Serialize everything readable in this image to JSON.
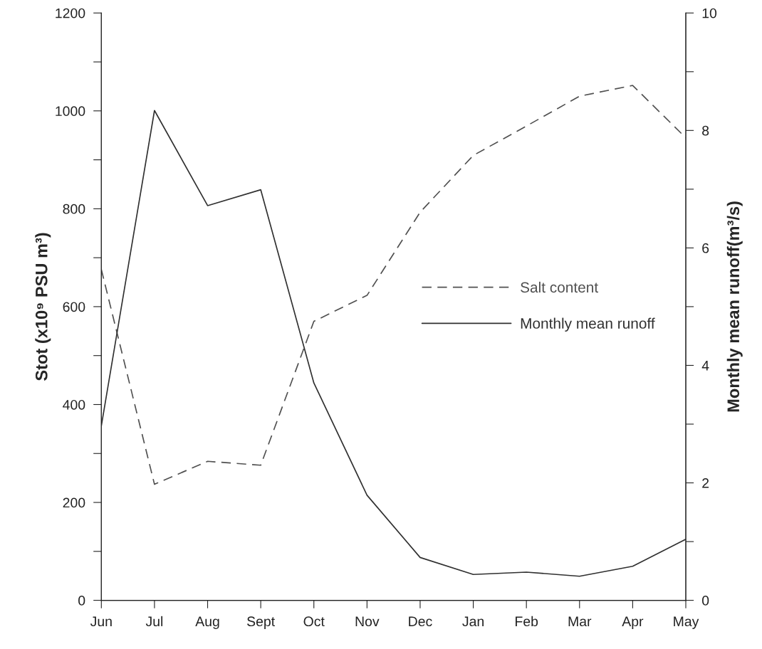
{
  "chart_data": {
    "type": "line",
    "ylabel": "Stot (x10⁹ PSU m³)",
    "y2label": "Monthly mean runoff(m³/s)",
    "categories": [
      "Jun",
      "Jul",
      "Aug",
      "Sept",
      "Oct",
      "Nov",
      "Dec",
      "Jan",
      "Feb",
      "Mar",
      "Apr",
      "May"
    ],
    "series": [
      {
        "name": "Salt content",
        "color": "#505050",
        "line_style": "dashed",
        "values": [
          676,
          237,
          284,
          276,
          570,
          623,
          793,
          909,
          969,
          1030,
          1052,
          945
        ]
      },
      {
        "name": "Monthly mean runoff",
        "color": "#303030",
        "line_style": "solid",
        "axis": "y2",
        "values": [
          2.97,
          8.34,
          6.72,
          6.99,
          3.7,
          1.79,
          0.73,
          0.44,
          0.48,
          0.41,
          0.58,
          1.04
        ]
      }
    ],
    "ylim": [
      0,
      1200
    ],
    "yticks": [
      0,
      {
        "value": 100,
        "label": null
      },
      200,
      {
        "value": 300,
        "label": null
      },
      400,
      {
        "value": 500,
        "label": null
      },
      600,
      {
        "value": 700,
        "label": null
      },
      800,
      {
        "value": 900,
        "label": null
      },
      1000,
      {
        "value": 1100,
        "label": null
      },
      1200
    ],
    "y2lim": [
      0,
      10
    ],
    "y2ticks": [
      0,
      {
        "value": 1,
        "label": null
      },
      2,
      {
        "value": 3,
        "label": null
      },
      4,
      {
        "value": 5,
        "label": null
      },
      6,
      {
        "value": 7,
        "label": null
      },
      8,
      {
        "value": 9,
        "label": null
      },
      10
    ],
    "grid": false,
    "legend": "right",
    "marker": "none"
  }
}
